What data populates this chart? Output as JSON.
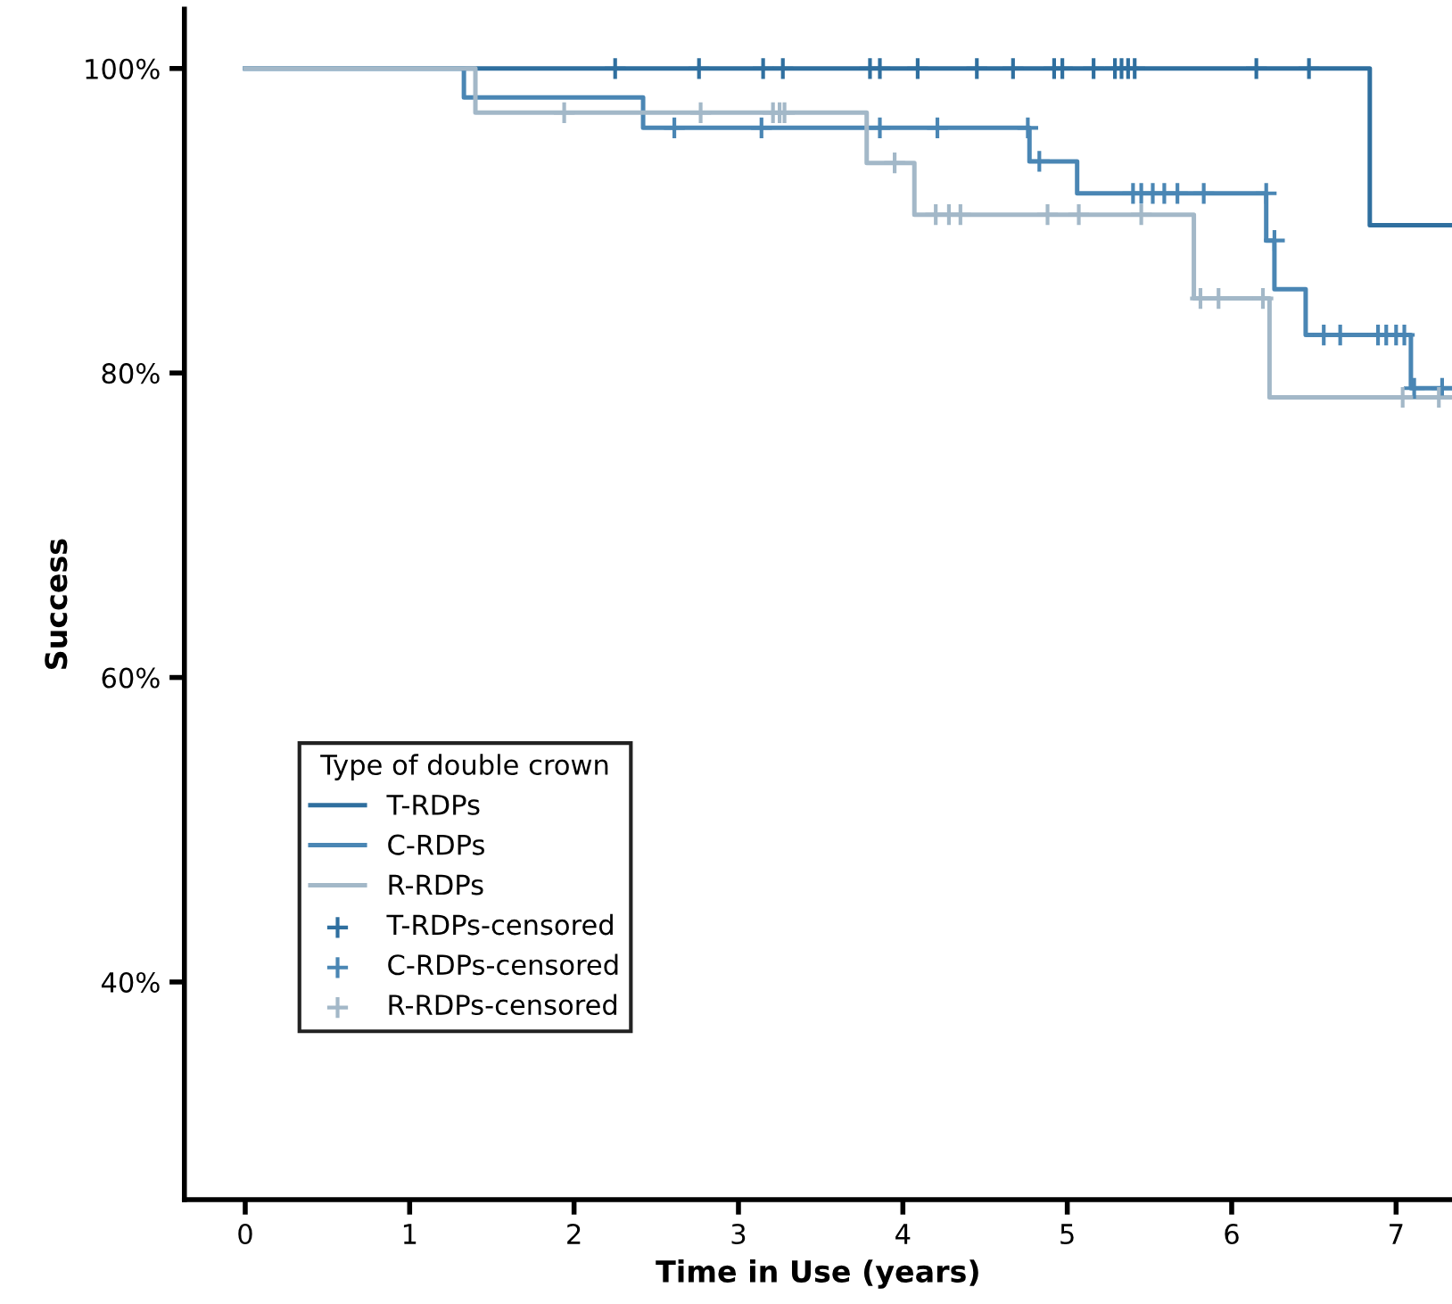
{
  "chart_data": {
    "type": "step",
    "xlabel": "Time in Use (years)",
    "ylabel": "Success",
    "legend_title": "Type of double crown",
    "legend": "bottom left",
    "grid": false,
    "xlim": [
      -0.37,
      7.34
    ],
    "xticks": [
      0,
      1,
      2,
      3,
      4,
      5,
      6,
      7
    ],
    "ylim": [
      25.7,
      103.9
    ],
    "yticks": [
      {
        "value": 40,
        "label": "40%"
      },
      {
        "value": 60,
        "label": "60%"
      },
      {
        "value": 80,
        "label": "80%"
      },
      {
        "value": 100,
        "label": "100%"
      }
    ],
    "series": [
      {
        "name": "T-RDPs",
        "color": "#2f6f9f",
        "x": [
          0,
          6.84,
          7.34
        ],
        "values": [
          100,
          89.7,
          89.7
        ]
      },
      {
        "name": "C-RDPs",
        "color": "#4a86b4",
        "x": [
          0,
          1.33,
          2.42,
          4.77,
          5.06,
          6.21,
          6.26,
          6.45,
          7.09,
          7.34
        ],
        "values": [
          100,
          98.1,
          96.1,
          93.9,
          91.8,
          88.7,
          85.5,
          82.5,
          79.0,
          79.0
        ]
      },
      {
        "name": "R-RDPs",
        "color": "#a3b8c8",
        "x": [
          0,
          1.4,
          3.78,
          4.07,
          5.77,
          6.23,
          7.34
        ],
        "values": [
          100,
          97.1,
          93.8,
          90.4,
          84.9,
          78.4,
          78.4
        ]
      },
      {
        "name": "T-RDPs-censored",
        "type": "scatter",
        "marker": "cross",
        "color": "#2f6f9f",
        "x": [
          2.25,
          2.76,
          3.15,
          3.27,
          3.8,
          3.86,
          4.09,
          4.45,
          4.67,
          4.92,
          4.97,
          5.16,
          5.29,
          5.33,
          5.37,
          5.41,
          6.15,
          6.47
        ],
        "values": [
          100,
          100,
          100,
          100,
          100,
          100,
          100,
          100,
          100,
          100,
          100,
          100,
          100,
          100,
          100,
          100,
          100,
          100
        ]
      },
      {
        "name": "C-RDPs-censored",
        "type": "scatter",
        "marker": "cross",
        "color": "#4a86b4",
        "x": [
          2.61,
          3.14,
          3.86,
          4.21,
          4.76,
          4.83,
          5.4,
          5.45,
          5.52,
          5.59,
          5.67,
          5.83,
          6.21,
          6.26,
          6.56,
          6.66,
          6.89,
          6.94,
          7.0,
          7.05,
          7.11,
          7.28
        ],
        "values": [
          96.1,
          96.1,
          96.1,
          96.1,
          96.1,
          93.9,
          91.8,
          91.8,
          91.8,
          91.8,
          91.8,
          91.8,
          91.8,
          88.7,
          82.5,
          82.5,
          82.5,
          82.5,
          82.5,
          82.5,
          79.0,
          79.0
        ]
      },
      {
        "name": "R-RDPs-censored",
        "type": "scatter",
        "marker": "cross",
        "color": "#a3b8c8",
        "x": [
          1.94,
          2.77,
          3.21,
          3.25,
          3.28,
          3.95,
          4.2,
          4.28,
          4.35,
          4.88,
          5.07,
          5.45,
          5.81,
          5.92,
          6.19,
          7.04,
          7.26
        ],
        "values": [
          97.1,
          97.1,
          97.1,
          97.1,
          97.1,
          93.8,
          90.4,
          90.4,
          90.4,
          90.4,
          90.4,
          90.4,
          84.9,
          84.9,
          84.9,
          78.4,
          78.4
        ]
      }
    ]
  }
}
